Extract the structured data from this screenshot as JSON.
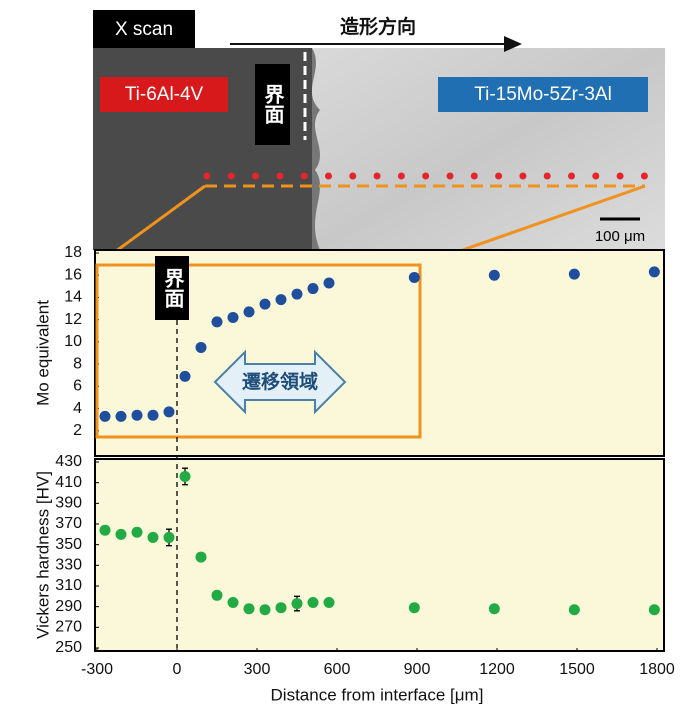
{
  "image": {
    "scan_label": "X scan",
    "direction_label": "造形方向",
    "left_alloy": "Ti-6Al-4V",
    "interface_label": "界面",
    "right_alloy": "Ti-15Mo-5Zr-3Al",
    "scale_bar": "100 μm"
  },
  "chart_data": [
    {
      "type": "scatter",
      "y_label": "Mo equivalent",
      "x": [
        -270,
        -210,
        -150,
        -90,
        -30,
        30,
        90,
        150,
        210,
        270,
        330,
        390,
        450,
        510,
        570,
        890,
        1190,
        1490,
        1790
      ],
      "values": [
        3.3,
        3.3,
        3.4,
        3.4,
        3.7,
        6.9,
        9.5,
        11.8,
        12.2,
        12.7,
        13.4,
        13.8,
        14.3,
        14.8,
        15.3,
        15.8,
        16.0,
        16.1,
        16.3
      ],
      "color": "#1f4e9c",
      "xlim": [
        -300,
        1800
      ],
      "ylim": [
        0,
        18
      ],
      "yticks": [
        2,
        4,
        6,
        8,
        10,
        12,
        14,
        16,
        18
      ],
      "annotations": {
        "interface": "界面",
        "transition": "遷移領域"
      }
    },
    {
      "type": "scatter",
      "y_label": "Vickers hardness [HV]",
      "x_label": "Distance from interface [μm]",
      "x": [
        -270,
        -210,
        -150,
        -90,
        -30,
        30,
        90,
        150,
        210,
        270,
        330,
        390,
        450,
        510,
        570,
        890,
        1190,
        1490,
        1790
      ],
      "values": [
        364,
        360,
        362,
        357,
        357,
        416,
        338,
        301,
        294,
        288,
        287,
        289,
        293,
        294,
        294,
        289,
        288,
        287,
        287
      ],
      "errors": [
        null,
        null,
        null,
        null,
        8,
        8,
        null,
        null,
        null,
        null,
        null,
        null,
        7,
        null,
        null,
        null,
        null,
        null,
        null
      ],
      "color": "#22aa44",
      "xlim": [
        -300,
        1800
      ],
      "ylim": [
        250,
        430
      ],
      "yticks": [
        250,
        270,
        290,
        310,
        330,
        350,
        370,
        390,
        410,
        430
      ],
      "xticks": [
        -300,
        0,
        300,
        600,
        900,
        1200,
        1500,
        1800
      ]
    }
  ]
}
